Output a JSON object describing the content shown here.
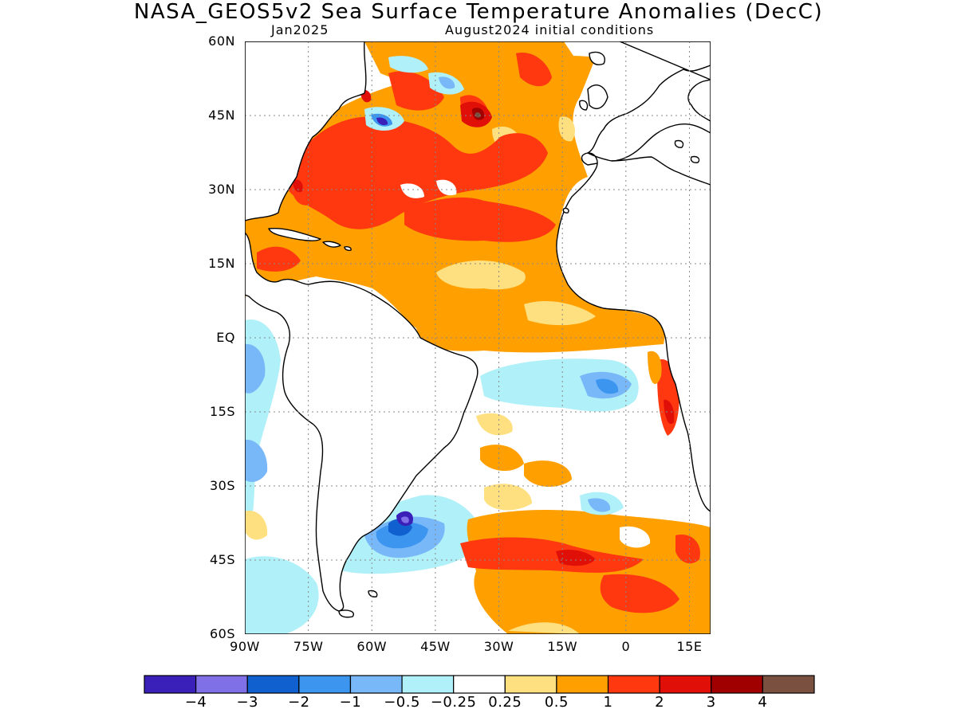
{
  "title": "NASA_GEOS5v2 Sea Surface Temperature Anomalies (DecC)",
  "subtitle_left": "Jan2025",
  "subtitle_right": "August2024 initial conditions",
  "map": {
    "lon_range": [
      -90,
      20
    ],
    "lat_range": [
      -60,
      60
    ],
    "y_ticks": [
      {
        "label": "60N",
        "lat": 60
      },
      {
        "label": "45N",
        "lat": 45
      },
      {
        "label": "30N",
        "lat": 30
      },
      {
        "label": "15N",
        "lat": 15
      },
      {
        "label": "EQ",
        "lat": 0
      },
      {
        "label": "15S",
        "lat": -15
      },
      {
        "label": "30S",
        "lat": -30
      },
      {
        "label": "45S",
        "lat": -45
      },
      {
        "label": "60S",
        "lat": -60
      }
    ],
    "x_ticks": [
      {
        "label": "90W",
        "lon": -90
      },
      {
        "label": "75W",
        "lon": -75
      },
      {
        "label": "60W",
        "lon": -60
      },
      {
        "label": "45W",
        "lon": -45
      },
      {
        "label": "30W",
        "lon": -30
      },
      {
        "label": "15W",
        "lon": -15
      },
      {
        "label": "0",
        "lon": 0
      },
      {
        "label": "15E",
        "lon": 15
      }
    ],
    "grid": "dotted"
  },
  "colorbar": {
    "colors": [
      "#3a20b8",
      "#8070e8",
      "#1060d0",
      "#3c96f0",
      "#78b8f8",
      "#b0f0f8",
      "#ffffff",
      "#ffe080",
      "#ffa000",
      "#ff3810",
      "#e01008",
      "#a00000",
      "#7a5040"
    ],
    "labels": [
      "−4",
      "−3",
      "−2",
      "−1",
      "−0.5",
      "−0.25",
      "0.25",
      "0.5",
      "1",
      "2",
      "3",
      "4"
    ]
  }
}
